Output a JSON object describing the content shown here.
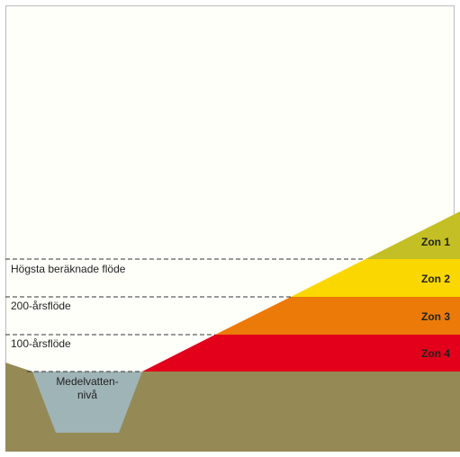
{
  "levels": [
    "Högsta beräknade flöde",
    "200-årsflöde",
    "100-årsflöde"
  ],
  "zones": [
    "Zon 1",
    "Zon 2",
    "Zon 3",
    "Zon 4"
  ],
  "channel_label": [
    "Medelvatten-",
    "nivå"
  ]
}
